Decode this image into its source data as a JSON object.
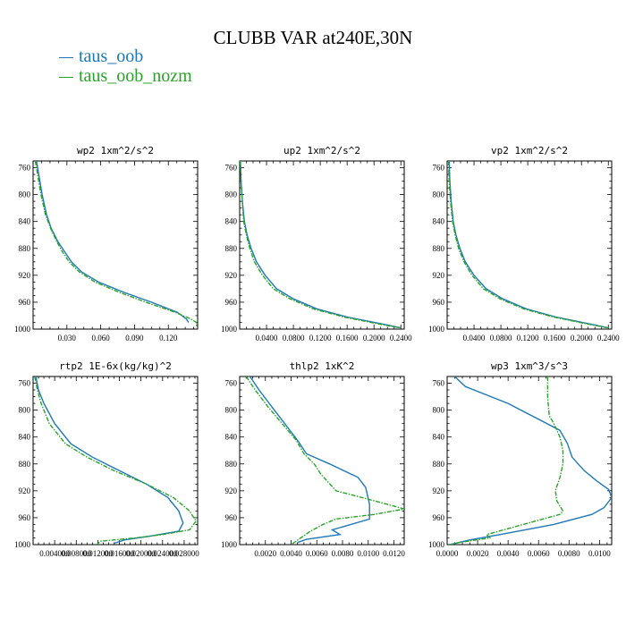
{
  "title": "CLUBB VAR at240E,30N",
  "legend": [
    {
      "label": "taus_oob",
      "color": "#1f77b4"
    },
    {
      "label": "taus_oob_nozm",
      "color": "#2ca02c"
    }
  ],
  "chart_data": [
    {
      "type": "line",
      "title": "wp2",
      "units": "1xm^2/s^2",
      "xlim": [
        0.0,
        0.146
      ],
      "ylim": [
        1000,
        750
      ],
      "xticks": [
        0.03,
        0.06,
        0.09,
        0.12
      ],
      "xticklabels": [
        "0.030",
        "0.060",
        "0.090",
        "0.120"
      ],
      "yticks": [
        760,
        800,
        840,
        880,
        920,
        960,
        1000
      ],
      "yticklabels": [
        "760",
        "800",
        "840",
        "880",
        "920",
        "960",
        "1000"
      ],
      "series": [
        {
          "name": "taus_oob",
          "color": "#1f77b4",
          "dashed": false,
          "x": [
            0.003,
            0.005,
            0.008,
            0.012,
            0.016,
            0.022,
            0.028,
            0.034,
            0.043,
            0.058,
            0.08,
            0.105,
            0.128,
            0.136,
            0.138
          ],
          "y": [
            750,
            770,
            800,
            830,
            850,
            870,
            885,
            900,
            915,
            930,
            945,
            960,
            975,
            985,
            990
          ]
        },
        {
          "name": "taus_oob_nozm",
          "color": "#2ca02c",
          "dashed": true,
          "x": [
            0.002,
            0.004,
            0.007,
            0.011,
            0.016,
            0.021,
            0.026,
            0.032,
            0.041,
            0.055,
            0.076,
            0.1,
            0.126,
            0.14,
            0.145,
            0.145
          ],
          "y": [
            750,
            770,
            800,
            830,
            852,
            870,
            885,
            900,
            915,
            930,
            945,
            960,
            975,
            985,
            990,
            996
          ]
        }
      ]
    },
    {
      "type": "line",
      "title": "up2",
      "units": "1xm^2/s^2",
      "xlim": [
        0.0,
        0.245
      ],
      "ylim": [
        1000,
        750
      ],
      "xticks": [
        0.04,
        0.08,
        0.12,
        0.16,
        0.2,
        0.24
      ],
      "xticklabels": [
        "0.0400",
        "0.0800",
        "0.1200",
        "0.1600",
        "0.2000",
        "0.2400"
      ],
      "yticks": [
        760,
        800,
        840,
        880,
        920,
        960,
        1000
      ],
      "yticklabels": [
        "760",
        "800",
        "840",
        "880",
        "920",
        "960",
        "1000"
      ],
      "series": [
        {
          "name": "taus_oob",
          "color": "#1f77b4",
          "dashed": false,
          "x": [
            0.001,
            0.002,
            0.004,
            0.007,
            0.011,
            0.017,
            0.025,
            0.038,
            0.055,
            0.08,
            0.115,
            0.16,
            0.215,
            0.24
          ],
          "y": [
            750,
            780,
            810,
            840,
            860,
            880,
            900,
            920,
            940,
            955,
            970,
            982,
            993,
            998
          ]
        },
        {
          "name": "taus_oob_nozm",
          "color": "#2ca02c",
          "dashed": true,
          "x": [
            0.001,
            0.002,
            0.004,
            0.006,
            0.01,
            0.015,
            0.022,
            0.034,
            0.05,
            0.075,
            0.11,
            0.155,
            0.21,
            0.238
          ],
          "y": [
            750,
            780,
            810,
            840,
            860,
            880,
            900,
            920,
            940,
            955,
            970,
            982,
            993,
            998
          ]
        }
      ]
    },
    {
      "type": "line",
      "title": "vp2",
      "units": "1xm^2/s^2",
      "xlim": [
        0.0,
        0.245
      ],
      "ylim": [
        1000,
        750
      ],
      "xticks": [
        0.04,
        0.08,
        0.12,
        0.16,
        0.2,
        0.24
      ],
      "xticklabels": [
        "0.0400",
        "0.0800",
        "0.1200",
        "0.1600",
        "0.2000",
        "0.2400"
      ],
      "yticks": [
        760,
        800,
        840,
        880,
        920,
        960,
        1000
      ],
      "yticklabels": [
        "760",
        "800",
        "840",
        "880",
        "920",
        "960",
        "1000"
      ],
      "series": [
        {
          "name": "taus_oob",
          "color": "#1f77b4",
          "dashed": false,
          "x": [
            0.003,
            0.004,
            0.006,
            0.009,
            0.013,
            0.019,
            0.027,
            0.04,
            0.058,
            0.083,
            0.118,
            0.162,
            0.215,
            0.24
          ],
          "y": [
            750,
            780,
            810,
            840,
            860,
            880,
            900,
            920,
            940,
            955,
            970,
            982,
            993,
            998
          ]
        },
        {
          "name": "taus_oob_nozm",
          "color": "#2ca02c",
          "dashed": true,
          "x": [
            0.002,
            0.003,
            0.005,
            0.008,
            0.012,
            0.017,
            0.025,
            0.037,
            0.054,
            0.079,
            0.114,
            0.158,
            0.212,
            0.238
          ],
          "y": [
            750,
            780,
            810,
            840,
            860,
            880,
            900,
            920,
            940,
            955,
            970,
            982,
            993,
            998
          ]
        }
      ]
    },
    {
      "type": "line",
      "title": "rtp2",
      "units": "1E-6x(kg/kg)^2",
      "xlim": [
        0.0,
        0.0305
      ],
      "ylim": [
        1000,
        750
      ],
      "xticks": [
        0.004,
        0.008,
        0.012,
        0.016,
        0.02,
        0.024,
        0.028
      ],
      "xticklabels": [
        "0.004000",
        "0.008000",
        "0.012000",
        "0.016000",
        "0.020000",
        "0.024000",
        "0.028000"
      ],
      "yticks": [
        760,
        800,
        840,
        880,
        920,
        960,
        1000
      ],
      "yticklabels": [
        "760",
        "800",
        "840",
        "880",
        "920",
        "960",
        "1000"
      ],
      "series": [
        {
          "name": "taus_oob",
          "color": "#1f77b4",
          "dashed": false,
          "x": [
            0.0005,
            0.001,
            0.002,
            0.004,
            0.007,
            0.011,
            0.016,
            0.021,
            0.025,
            0.027,
            0.0278,
            0.027,
            0.022,
            0.017,
            0.015
          ],
          "y": [
            750,
            770,
            790,
            820,
            850,
            870,
            890,
            910,
            930,
            950,
            968,
            980,
            987,
            993,
            998
          ]
        },
        {
          "name": "taus_oob_nozm",
          "color": "#2ca02c",
          "dashed": true,
          "x": [
            0.0003,
            0.0008,
            0.0015,
            0.003,
            0.006,
            0.01,
            0.015,
            0.021,
            0.026,
            0.029,
            0.0302,
            0.029,
            0.024,
            0.019,
            0.0125,
            0.0118
          ],
          "y": [
            750,
            770,
            790,
            820,
            850,
            870,
            890,
            910,
            930,
            950,
            965,
            978,
            985,
            990,
            995,
            1000
          ]
        }
      ]
    },
    {
      "type": "line",
      "title": "thlp2",
      "units": "1xK^2",
      "xlim": [
        0.0,
        0.0128
      ],
      "ylim": [
        1000,
        750
      ],
      "xticks": [
        0.002,
        0.004,
        0.006,
        0.008,
        0.01,
        0.012
      ],
      "xticklabels": [
        "0.0020",
        "0.0040",
        "0.0060",
        "0.0080",
        "0.0100",
        "0.0120"
      ],
      "yticks": [
        760,
        800,
        840,
        880,
        920,
        960,
        1000
      ],
      "yticklabels": [
        "760",
        "800",
        "840",
        "880",
        "920",
        "960",
        "1000"
      ],
      "series": [
        {
          "name": "taus_oob",
          "color": "#1f77b4",
          "dashed": false,
          "x": [
            0.0008,
            0.0015,
            0.0025,
            0.0035,
            0.0045,
            0.0052,
            0.007,
            0.0092,
            0.0098,
            0.0101,
            0.0101,
            0.0072,
            0.0078,
            0.0052,
            0.0045
          ],
          "y": [
            750,
            770,
            795,
            820,
            845,
            865,
            880,
            900,
            915,
            940,
            962,
            978,
            985,
            992,
            997
          ]
        },
        {
          "name": "taus_oob_nozm",
          "color": "#2ca02c",
          "dashed": true,
          "x": [
            0.0005,
            0.0012,
            0.0022,
            0.0033,
            0.0044,
            0.005,
            0.0058,
            0.0063,
            0.0075,
            0.0105,
            0.0128,
            0.0105,
            0.0075,
            0.0065,
            0.0055,
            0.004
          ],
          "y": [
            750,
            770,
            795,
            820,
            845,
            865,
            880,
            895,
            920,
            935,
            947,
            955,
            962,
            970,
            980,
            1000
          ]
        }
      ]
    },
    {
      "type": "line",
      "title": "wp3",
      "units": "1xm^3/s^3",
      "xlim": [
        0.0,
        0.0108
      ],
      "ylim": [
        1000,
        750
      ],
      "xticks": [
        0.0,
        0.002,
        0.004,
        0.006,
        0.008,
        0.01
      ],
      "xticklabels": [
        "0.0000",
        "0.0020",
        "0.0040",
        "0.0060",
        "0.0080",
        "0.0100"
      ],
      "yticks": [
        760,
        800,
        840,
        880,
        920,
        960,
        1000
      ],
      "yticklabels": [
        "760",
        "800",
        "840",
        "880",
        "920",
        "960",
        "1000"
      ],
      "series": [
        {
          "name": "taus_oob",
          "color": "#1f77b4",
          "dashed": false,
          "x": [
            0.0005,
            0.0012,
            0.004,
            0.0074,
            0.0079,
            0.0082,
            0.009,
            0.0098,
            0.0106,
            0.0108,
            0.0103,
            0.0095,
            0.007,
            0.0035,
            0.0015,
            0.0002
          ],
          "y": [
            750,
            765,
            790,
            830,
            850,
            870,
            890,
            905,
            918,
            930,
            945,
            955,
            970,
            985,
            993,
            1000
          ]
        },
        {
          "name": "taus_oob_nozm",
          "color": "#2ca02c",
          "dashed": true,
          "x": [
            0.0066,
            0.0066,
            0.0067,
            0.007,
            0.0074,
            0.0076,
            0.0076,
            0.0074,
            0.0071,
            0.0072,
            0.0076,
            0.0074,
            0.005,
            0.0026,
            0.0028,
            0.0008,
            0.0001
          ],
          "y": [
            750,
            780,
            808,
            820,
            840,
            860,
            880,
            900,
            920,
            935,
            950,
            955,
            970,
            985,
            990,
            997,
            1000
          ]
        }
      ]
    }
  ]
}
